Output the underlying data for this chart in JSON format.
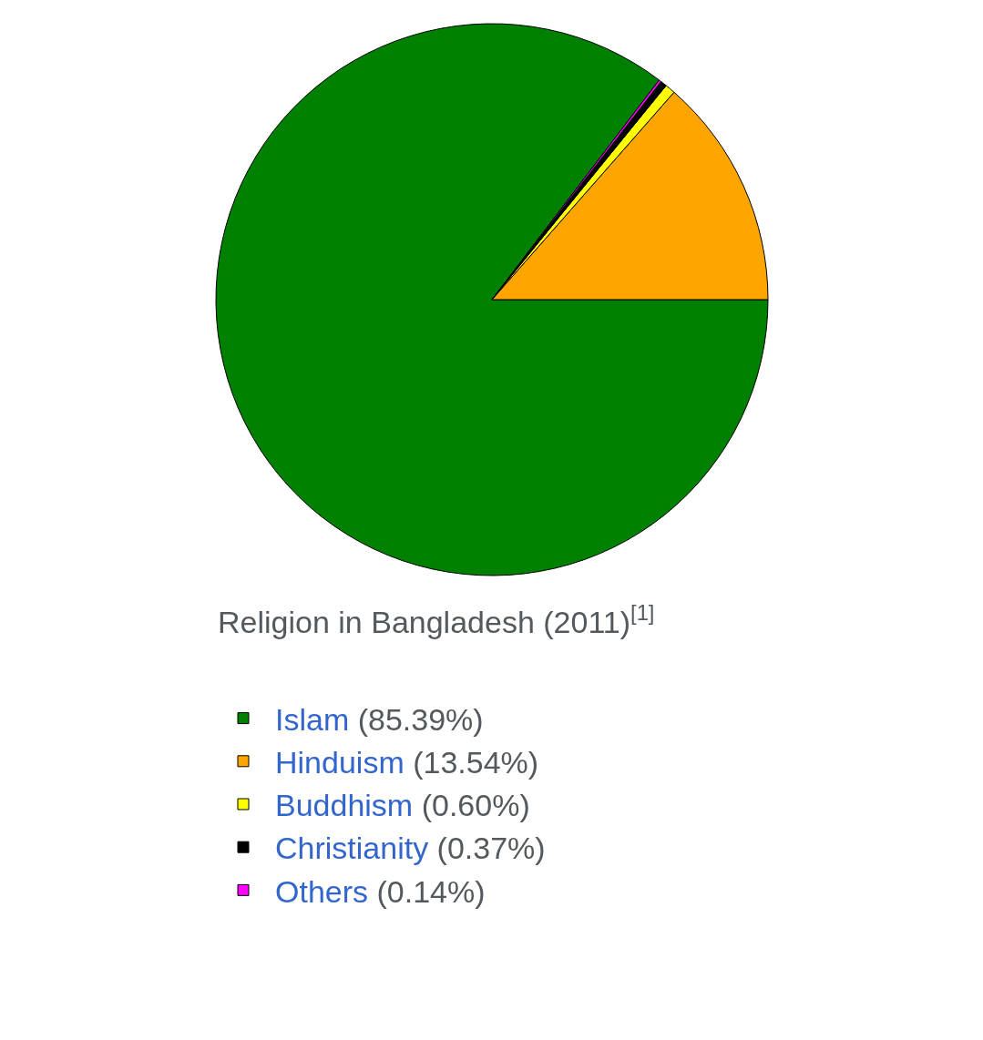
{
  "chart_data": {
    "type": "pie",
    "title": "Religion in Bangladesh (2011)$^{[1]}$",
    "categories": [
      "Islam",
      "Hinduism",
      "Buddhism",
      "Christianity",
      "Others"
    ],
    "values": [
      85.39,
      13.54,
      0.6,
      0.37,
      0.14
    ],
    "colors": [
      "#008000",
      "#ffa500",
      "#ffff00",
      "#000000",
      "#ff00ff"
    ],
    "value_labels": [
      "(85.39%)",
      "(13.54%)",
      "(0.60%)",
      "(0.37%)",
      "(0.14%)"
    ],
    "legend": "bottom"
  }
}
